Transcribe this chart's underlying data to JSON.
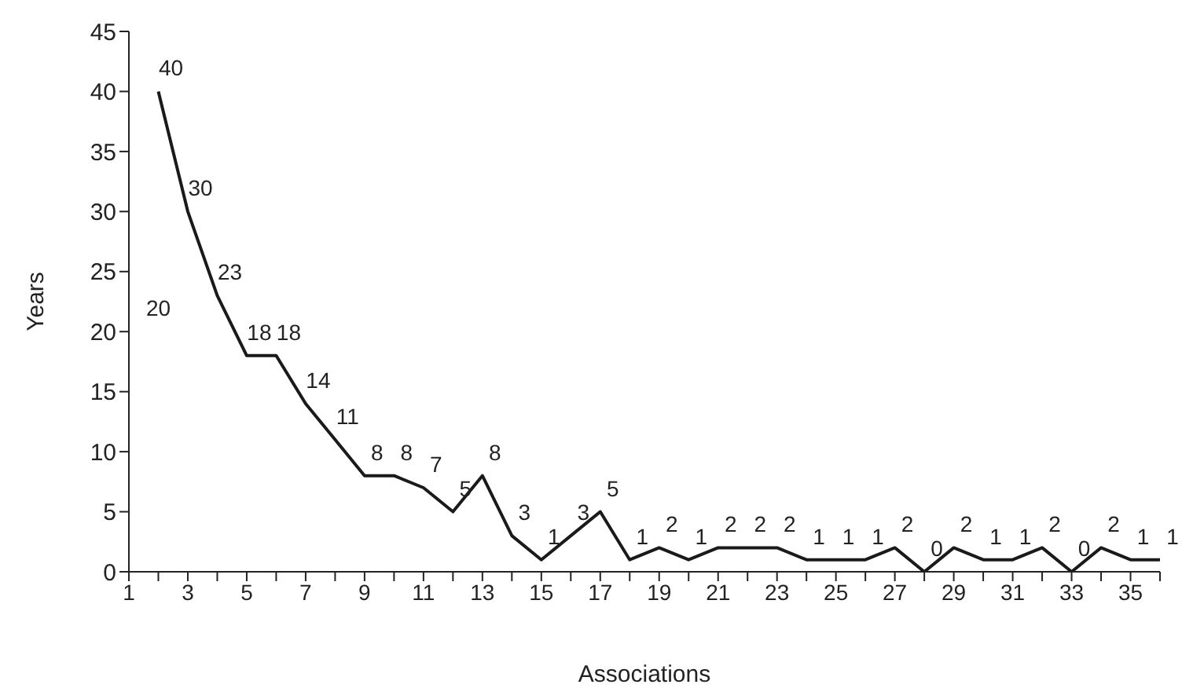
{
  "chart_data": {
    "type": "line",
    "xlabel": "Associations",
    "ylabel": "Years",
    "x": [
      2,
      3,
      4,
      5,
      6,
      7,
      8,
      9,
      10,
      11,
      12,
      13,
      14,
      15,
      16,
      17,
      18,
      19,
      20,
      21,
      22,
      23,
      24,
      25,
      26,
      27,
      28,
      29,
      30,
      31,
      32,
      33,
      34,
      35,
      36
    ],
    "series": [
      {
        "color": "#1a1a1a",
        "values": [
          40,
          30,
          23,
          18,
          18,
          14,
          11,
          8,
          8,
          7,
          5,
          8,
          3,
          1,
          3,
          5,
          1,
          2,
          1,
          2,
          2,
          2,
          1,
          1,
          1,
          2,
          0,
          2,
          1,
          1,
          2,
          0,
          2,
          1,
          1
        ]
      }
    ],
    "xlim": [
      1,
      36
    ],
    "xticks": [
      1,
      {
        "value": 2,
        "label": null
      },
      3,
      {
        "value": 4,
        "label": null
      },
      5,
      {
        "value": 6,
        "label": null
      },
      7,
      {
        "value": 8,
        "label": null
      },
      9,
      {
        "value": 10,
        "label": null
      },
      11,
      {
        "value": 12,
        "label": null
      },
      13,
      {
        "value": 14,
        "label": null
      },
      15,
      {
        "value": 16,
        "label": null
      },
      17,
      {
        "value": 18,
        "label": null
      },
      19,
      {
        "value": 20,
        "label": null
      },
      21,
      {
        "value": 22,
        "label": null
      },
      23,
      {
        "value": 24,
        "label": null
      },
      25,
      {
        "value": 26,
        "label": null
      },
      27,
      {
        "value": 28,
        "label": null
      },
      29,
      {
        "value": 30,
        "label": null
      },
      31,
      {
        "value": 32,
        "label": null
      },
      33,
      {
        "value": 34,
        "label": null
      },
      35,
      {
        "value": 36,
        "label": null
      }
    ],
    "ylim": [
      0,
      45
    ],
    "yticks": [
      0,
      5,
      10,
      15,
      20,
      25,
      30,
      35,
      40,
      45
    ],
    "annotations": [
      "20"
    ],
    "data_labels": true,
    "grid": false,
    "legend": false,
    "marker": "none",
    "line_style": "solid"
  }
}
